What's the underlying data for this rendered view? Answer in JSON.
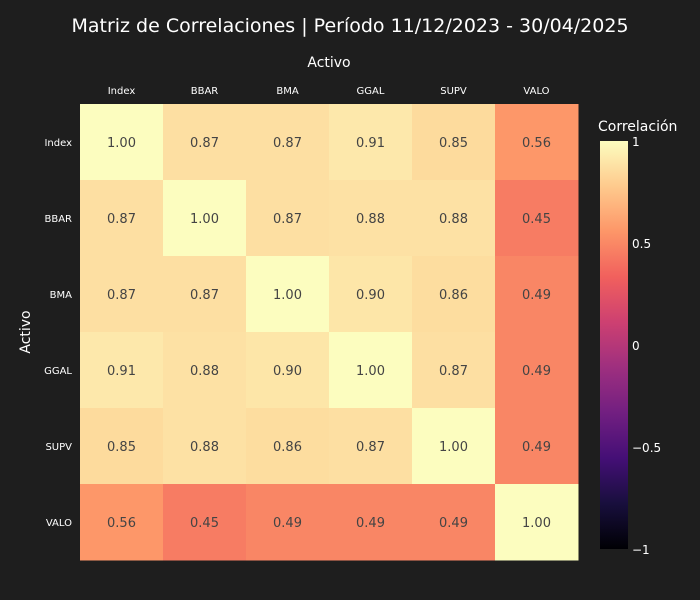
{
  "chart_data": {
    "type": "heatmap",
    "title": "Matriz de Correlaciones | Período 11/12/2023 - 30/04/2025",
    "xlabel": "Activo",
    "ylabel": "Activo",
    "x": [
      "Index",
      "BBAR",
      "BMA",
      "GGAL",
      "SUPV",
      "VALO"
    ],
    "y": [
      "Index",
      "BBAR",
      "BMA",
      "GGAL",
      "SUPV",
      "VALO"
    ],
    "z": [
      [
        1.0,
        0.87,
        0.87,
        0.91,
        0.85,
        0.56
      ],
      [
        0.87,
        1.0,
        0.87,
        0.88,
        0.88,
        0.45
      ],
      [
        0.87,
        0.87,
        1.0,
        0.9,
        0.86,
        0.49
      ],
      [
        0.91,
        0.88,
        0.9,
        1.0,
        0.87,
        0.49
      ],
      [
        0.85,
        0.88,
        0.86,
        0.87,
        1.0,
        0.49
      ],
      [
        0.56,
        0.45,
        0.49,
        0.49,
        0.49,
        1.0
      ]
    ],
    "zlim": [
      -1,
      1
    ],
    "colorscale": "magma",
    "colorbar": {
      "title": "Correlación",
      "ticks": [
        1,
        0.5,
        0,
        -0.5,
        -1
      ],
      "tick_labels": [
        "1",
        "0.5",
        "0",
        "−0.5",
        "−1"
      ]
    },
    "x_axis_side": "top"
  },
  "colors": {
    "background": "#1e1e1e",
    "text": "#ffffff",
    "magma_stops": [
      "#000004",
      "#180f3d",
      "#440f76",
      "#721f81",
      "#9e2f7f",
      "#cd4071",
      "#f1605d",
      "#fd9668",
      "#feca8d",
      "#fcfdbf"
    ]
  }
}
